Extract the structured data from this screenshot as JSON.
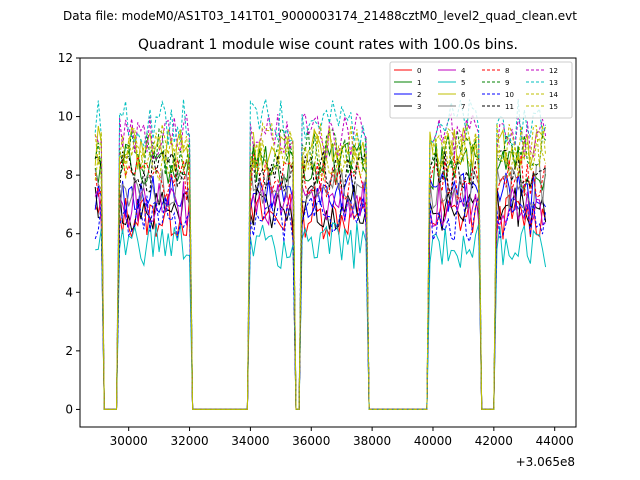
{
  "chart_data": {
    "type": "line",
    "suptitle": "Data file: modeM0/AS1T03_141T01_9000003174_21488cztM0_level2_quad_clean.evt",
    "title": "Quadrant 1 module wise count rates with 100.0s bins.",
    "xlabel": "",
    "ylabel": "",
    "x_offset_label": "+3.065e8",
    "xlim": [
      28400,
      44700
    ],
    "ylim": [
      -0.6,
      12
    ],
    "xticks": [
      30000,
      32000,
      34000,
      36000,
      38000,
      40000,
      42000,
      44000
    ],
    "xtick_labels": [
      "30000",
      "32000",
      "34000",
      "36000",
      "38000",
      "40000",
      "42000",
      "44000"
    ],
    "yticks": [
      0,
      2,
      4,
      6,
      8,
      10,
      12
    ],
    "ytick_labels": [
      "0",
      "2",
      "4",
      "6",
      "8",
      "10",
      "12"
    ],
    "grid": false,
    "legend_position": "upper-right",
    "legend_columns": 4,
    "colors": {
      "0": "#ff0000",
      "1": "#008000",
      "2": "#0000ff",
      "3": "#000000",
      "4": "#bf00bf",
      "5": "#00bfbf",
      "6": "#bfbf00",
      "7": "#808080",
      "8": "#ff0000",
      "9": "#008000",
      "10": "#0000ff",
      "11": "#000000",
      "12": "#bf00bf",
      "13": "#00bfbf",
      "14": "#bfbf00",
      "15": "#bfbf00"
    },
    "time_range": [
      28900,
      43700
    ],
    "bin_size": 100,
    "segments": [
      [
        28900,
        29100
      ],
      [
        29700,
        32000
      ],
      [
        34000,
        35400
      ],
      [
        35700,
        37800
      ],
      [
        39900,
        41500
      ],
      [
        42100,
        43700
      ]
    ],
    "series": [
      {
        "name": "0",
        "level": 6.6,
        "style": "solid"
      },
      {
        "name": "1",
        "level": 8.3,
        "style": "solid"
      },
      {
        "name": "2",
        "level": 7.3,
        "style": "solid"
      },
      {
        "name": "3",
        "level": 6.9,
        "style": "solid"
      },
      {
        "name": "4",
        "level": 7.0,
        "style": "solid"
      },
      {
        "name": "5",
        "level": 5.6,
        "style": "solid"
      },
      {
        "name": "6",
        "level": 8.9,
        "style": "solid"
      },
      {
        "name": "7",
        "level": 7.6,
        "style": "solid"
      },
      {
        "name": "8",
        "level": 7.9,
        "style": "dashed"
      },
      {
        "name": "9",
        "level": 8.8,
        "style": "dashed"
      },
      {
        "name": "10",
        "level": 6.5,
        "style": "dashed"
      },
      {
        "name": "11",
        "level": 8.1,
        "style": "dashed"
      },
      {
        "name": "12",
        "level": 9.3,
        "style": "dashed"
      },
      {
        "name": "13",
        "level": 9.8,
        "style": "dashed"
      },
      {
        "name": "14",
        "level": 8.6,
        "style": "dashed"
      },
      {
        "name": "15",
        "level": 9.0,
        "style": "dashed"
      }
    ]
  }
}
